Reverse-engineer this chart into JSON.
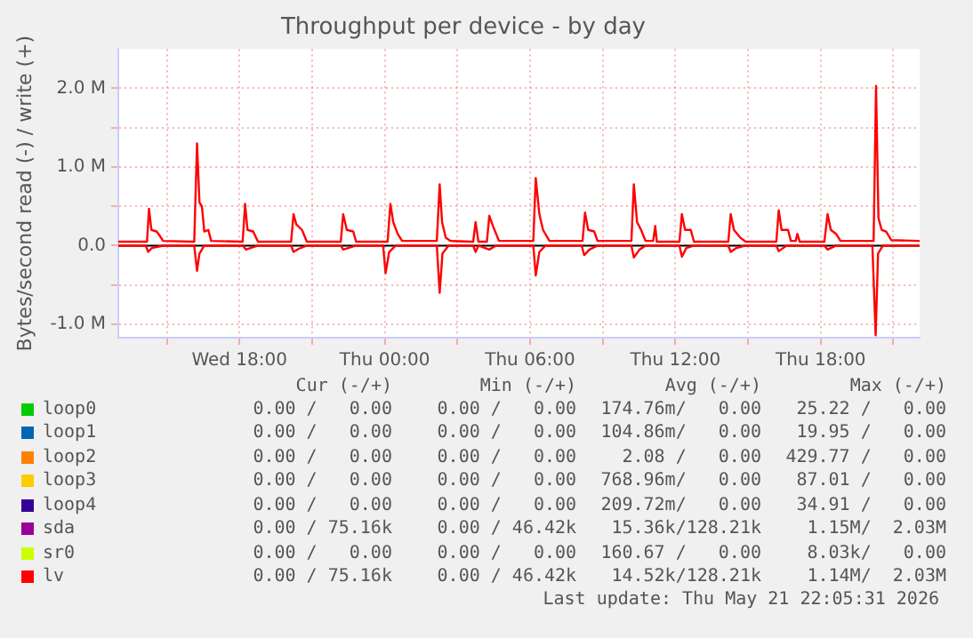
{
  "chart_data": {
    "type": "line",
    "title": "Throughput per device - by day",
    "ylabel": "Bytes/second read (-) / write (+)",
    "xlim": [
      "2026-05-20T13:00",
      "2026-05-21T22:05"
    ],
    "xticks": [
      {
        "value": "2026-05-20T15:00",
        "label": null
      },
      {
        "value": "2026-05-20T18:00",
        "label": "Wed 18:00"
      },
      {
        "value": "2026-05-20T21:00",
        "label": null
      },
      {
        "value": "2026-05-21T00:00",
        "label": "Thu 00:00"
      },
      {
        "value": "2026-05-21T03:00",
        "label": null
      },
      {
        "value": "2026-05-21T06:00",
        "label": "Thu 06:00"
      },
      {
        "value": "2026-05-21T09:00",
        "label": null
      },
      {
        "value": "2026-05-21T12:00",
        "label": "Thu 12:00"
      },
      {
        "value": "2026-05-21T15:00",
        "label": null
      },
      {
        "value": "2026-05-21T18:00",
        "label": "Thu 18:00"
      },
      {
        "value": "2026-05-21T21:00",
        "label": null
      }
    ],
    "ylim": [
      -1170000,
      2500000
    ],
    "yticks": [
      {
        "value": -1000000,
        "label": "-1.0 M"
      },
      {
        "value": -500000,
        "label": null
      },
      {
        "value": 0,
        "label": "0.0"
      },
      {
        "value": 500000,
        "label": null
      },
      {
        "value": 1000000,
        "label": "1.0 M"
      },
      {
        "value": 1500000,
        "label": null
      },
      {
        "value": 2000000,
        "label": "2.0 M"
      }
    ],
    "grid": true,
    "legend": "bottom",
    "marker": "none",
    "ref_lines": [
      {
        "axis": "y",
        "value": 0,
        "color": "#000000"
      }
    ],
    "series": [
      {
        "name": "loop0",
        "color": "#00cc00"
      },
      {
        "name": "loop1",
        "color": "#0066b3"
      },
      {
        "name": "loop2",
        "color": "#ff8000"
      },
      {
        "name": "loop3",
        "color": "#ffcc00"
      },
      {
        "name": "loop4",
        "color": "#330099"
      },
      {
        "name": "sda",
        "color": "#990099"
      },
      {
        "name": "sr0",
        "color": "#ccff00"
      },
      {
        "name": "lv",
        "color": "#ff0000",
        "x": [
          "2026-05-20T13:00",
          "2026-05-20T14:11",
          "2026-05-20T14:16",
          "2026-05-20T14:22",
          "2026-05-20T14:35",
          "2026-05-20T14:42",
          "2026-05-20T14:51",
          "2026-05-20T16:08",
          "2026-05-20T16:15",
          "2026-05-20T16:21",
          "2026-05-20T16:27",
          "2026-05-20T16:33",
          "2026-05-20T16:43",
          "2026-05-20T16:50",
          "2026-05-20T18:08",
          "2026-05-20T18:14",
          "2026-05-20T18:20",
          "2026-05-20T18:34",
          "2026-05-20T18:46",
          "2026-05-20T20:08",
          "2026-05-20T20:14",
          "2026-05-20T20:21",
          "2026-05-20T20:35",
          "2026-05-20T20:47",
          "2026-05-20T22:11",
          "2026-05-20T22:17",
          "2026-05-20T22:26",
          "2026-05-20T22:42",
          "2026-05-20T22:49",
          "2026-05-21T00:07",
          "2026-05-21T00:14",
          "2026-05-21T00:21",
          "2026-05-21T00:32",
          "2026-05-21T00:43",
          "2026-05-21T02:09",
          "2026-05-21T02:16",
          "2026-05-21T02:22",
          "2026-05-21T02:31",
          "2026-05-21T02:43",
          "2026-05-21T03:39",
          "2026-05-21T03:45",
          "2026-05-21T03:52",
          "2026-05-21T04:13",
          "2026-05-21T04:19",
          "2026-05-21T04:28",
          "2026-05-21T04:43",
          "2026-05-21T06:08",
          "2026-05-21T06:14",
          "2026-05-21T06:23",
          "2026-05-21T06:32",
          "2026-05-21T06:48",
          "2026-05-21T08:10",
          "2026-05-21T08:16",
          "2026-05-21T08:24",
          "2026-05-21T08:39",
          "2026-05-21T08:47",
          "2026-05-21T10:11",
          "2026-05-21T10:17",
          "2026-05-21T10:25",
          "2026-05-21T10:35",
          "2026-05-21T10:46",
          "2026-05-21T11:05",
          "2026-05-21T11:10",
          "2026-05-21T11:14",
          "2026-05-21T12:10",
          "2026-05-21T12:16",
          "2026-05-21T12:24",
          "2026-05-21T12:38",
          "2026-05-21T12:46",
          "2026-05-21T14:11",
          "2026-05-21T14:17",
          "2026-05-21T14:25",
          "2026-05-21T14:41",
          "2026-05-21T14:54",
          "2026-05-21T16:10",
          "2026-05-21T16:16",
          "2026-05-21T16:23",
          "2026-05-21T16:39",
          "2026-05-21T16:46",
          "2026-05-21T16:58",
          "2026-05-21T17:02",
          "2026-05-21T17:08",
          "2026-05-21T18:09",
          "2026-05-21T18:17",
          "2026-05-21T18:25",
          "2026-05-21T18:38",
          "2026-05-21T18:49",
          "2026-05-21T20:11",
          "2026-05-21T20:17",
          "2026-05-21T20:23",
          "2026-05-21T20:31",
          "2026-05-21T20:42",
          "2026-05-21T20:55",
          "2026-05-21T22:05"
        ],
        "values": [
          50000,
          50000,
          470000,
          200000,
          180000,
          130000,
          60000,
          50000,
          1300000,
          550000,
          500000,
          180000,
          200000,
          60000,
          50000,
          530000,
          200000,
          180000,
          50000,
          50000,
          400000,
          270000,
          200000,
          50000,
          50000,
          400000,
          200000,
          180000,
          50000,
          50000,
          530000,
          300000,
          150000,
          60000,
          60000,
          780000,
          300000,
          100000,
          60000,
          50000,
          300000,
          50000,
          50000,
          380000,
          250000,
          60000,
          60000,
          860000,
          400000,
          200000,
          60000,
          60000,
          420000,
          200000,
          180000,
          60000,
          60000,
          780000,
          300000,
          200000,
          60000,
          60000,
          250000,
          50000,
          50000,
          400000,
          200000,
          200000,
          50000,
          50000,
          400000,
          200000,
          100000,
          50000,
          50000,
          450000,
          200000,
          200000,
          60000,
          60000,
          150000,
          50000,
          50000,
          400000,
          200000,
          150000,
          60000,
          60000,
          2030000,
          350000,
          200000,
          180000,
          70000,
          60000
        ]
      },
      {
        "color": "#ff0000",
        "x": [
          "2026-05-20T13:00",
          "2026-05-20T14:08",
          "2026-05-20T14:14",
          "2026-05-20T14:23",
          "2026-05-20T14:51",
          "2026-05-20T16:08",
          "2026-05-20T16:15",
          "2026-05-20T16:21",
          "2026-05-20T16:33",
          "2026-05-20T18:09",
          "2026-05-20T18:16",
          "2026-05-20T18:46",
          "2026-05-20T20:08",
          "2026-05-20T20:14",
          "2026-05-20T20:27",
          "2026-05-20T20:47",
          "2026-05-20T22:11",
          "2026-05-20T22:17",
          "2026-05-20T22:49",
          "2026-05-20T23:56",
          "2026-05-21T00:02",
          "2026-05-21T00:11",
          "2026-05-21T00:27",
          "2026-05-21T02:09",
          "2026-05-21T02:16",
          "2026-05-21T02:23",
          "2026-05-21T02:38",
          "2026-05-21T03:39",
          "2026-05-21T03:45",
          "2026-05-21T03:52",
          "2026-05-21T04:19",
          "2026-05-21T04:35",
          "2026-05-21T06:08",
          "2026-05-21T06:14",
          "2026-05-21T06:23",
          "2026-05-21T06:38",
          "2026-05-21T08:08",
          "2026-05-21T08:14",
          "2026-05-21T08:27",
          "2026-05-21T08:47",
          "2026-05-21T10:11",
          "2026-05-21T10:17",
          "2026-05-21T10:31",
          "2026-05-21T10:46",
          "2026-05-21T12:10",
          "2026-05-21T12:16",
          "2026-05-21T12:27",
          "2026-05-21T12:46",
          "2026-05-21T14:11",
          "2026-05-21T14:17",
          "2026-05-21T14:31",
          "2026-05-21T14:54",
          "2026-05-21T16:10",
          "2026-05-21T16:16",
          "2026-05-21T16:35",
          "2026-05-21T18:09",
          "2026-05-21T18:17",
          "2026-05-21T18:38",
          "2026-05-21T20:08",
          "2026-05-21T20:16",
          "2026-05-21T20:22",
          "2026-05-21T20:34",
          "2026-05-21T22:05"
        ],
        "values": [
          0,
          0,
          -80000,
          -30000,
          0,
          0,
          -320000,
          -100000,
          0,
          0,
          -50000,
          0,
          0,
          -80000,
          -40000,
          0,
          0,
          -50000,
          0,
          0,
          -350000,
          -80000,
          0,
          0,
          -600000,
          -100000,
          0,
          0,
          -80000,
          0,
          -50000,
          0,
          0,
          -380000,
          -80000,
          0,
          0,
          -120000,
          -50000,
          0,
          0,
          -150000,
          -50000,
          0,
          0,
          -140000,
          -30000,
          0,
          0,
          -80000,
          -30000,
          0,
          0,
          -70000,
          0,
          0,
          -50000,
          0,
          0,
          -1140000,
          -100000,
          0,
          0
        ]
      }
    ],
    "annotations": [
      "Cur (-/+)",
      "Min (-/+)",
      "Avg (-/+)",
      "Max (-/+)",
      "0.00 /   0.00",
      "0.00 /   0.00",
      "174.76m/   0.00",
      "25.22 /   0.00",
      "0.00 /   0.00",
      "0.00 /   0.00",
      "104.86m/   0.00",
      "19.95 /   0.00",
      "0.00 /   0.00",
      "0.00 /   0.00",
      "2.08 /   0.00",
      "429.77 /   0.00",
      "0.00 /   0.00",
      "0.00 /   0.00",
      "768.96m/   0.00",
      "87.01 /   0.00",
      "0.00 /   0.00",
      "0.00 /   0.00",
      "209.72m/   0.00",
      "34.91 /   0.00",
      "0.00 / 75.16k",
      "0.00 / 46.42k",
      "15.36k/128.21k",
      "1.15M/  2.03M",
      "0.00 /   0.00",
      "0.00 /   0.00",
      "160.67 /   0.00",
      "8.03k/   0.00",
      "0.00 / 75.16k",
      "0.00 / 46.42k",
      "14.52k/128.21k",
      "1.14M/  2.03M",
      "Last update: Thu May 21 22:05:31 2026"
    ]
  }
}
